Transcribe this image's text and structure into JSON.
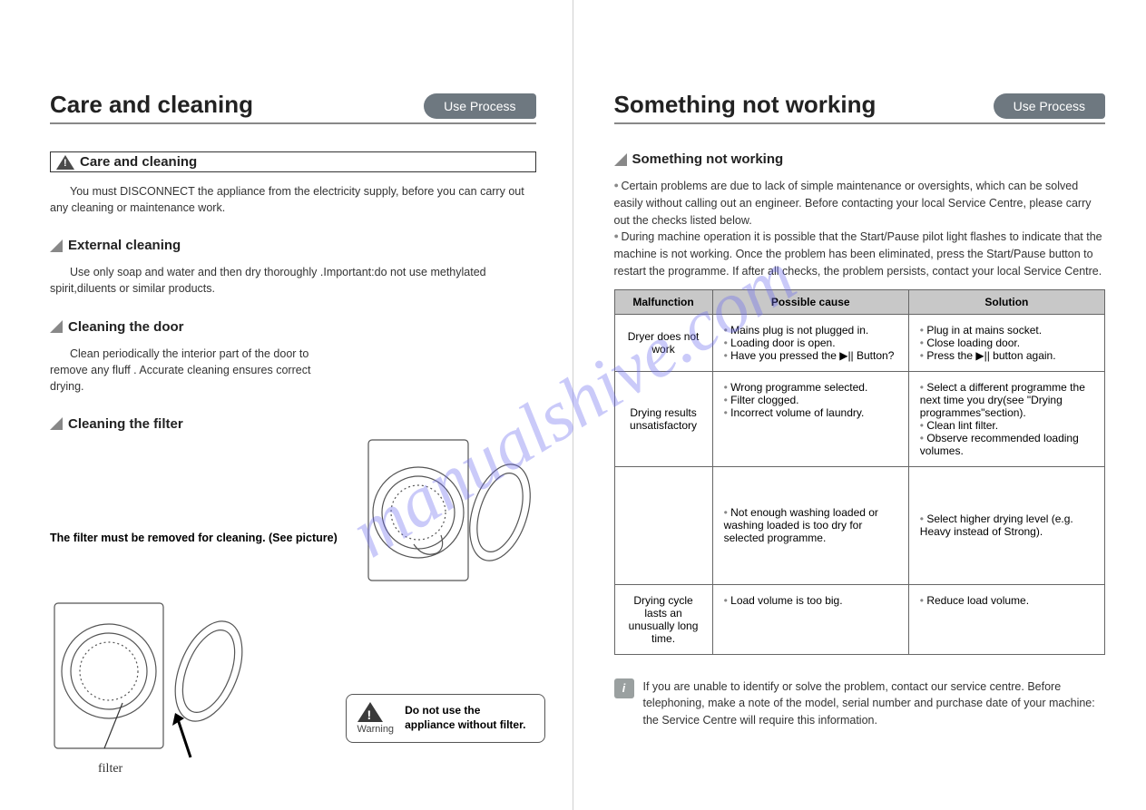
{
  "watermark": "manualshive.com",
  "left": {
    "title": "Care and cleaning",
    "tab": "Use Process",
    "section1": {
      "heading": "Care and cleaning",
      "text": "You must DISCONNECT the appliance from the electricity supply, before you can carry out any cleaning or maintenance work."
    },
    "section2": {
      "heading": "External cleaning",
      "text": "Use only soap and water and then dry thoroughly .Important:do not use methylated spirit,diluents or similar products."
    },
    "section3": {
      "heading": "Cleaning the door",
      "text": "Clean periodically the interior part of the door to remove any fluff . Accurate cleaning ensures correct drying."
    },
    "section4": {
      "heading": "Cleaning the filter",
      "caption": "The filter must be removed for cleaning. (See picture)"
    },
    "filter_label": "filter",
    "warning": {
      "label": "Warning",
      "text": "Do not use the appliance without filter."
    }
  },
  "right": {
    "title": "Something not working",
    "tab": "Use Process",
    "section_heading": "Something not working",
    "bullets": [
      "Certain problems are due to lack of simple maintenance or oversights, which can be solved easily without calling out an engineer. Before contacting your local Service Centre, please carry out the checks listed below.",
      "During machine operation it is possible that the Start/Pause pilot light flashes  to indicate that the machine is not working. Once the problem has been eliminated, press the Start/Pause button to restart the programme. If after all checks, the problem persists, contact your local Service Centre."
    ],
    "table": {
      "headers": [
        "Malfunction",
        "Possible cause",
        "Solution"
      ],
      "rows": [
        {
          "malfunction": "Dryer does not work",
          "causes": [
            "Mains plug is not plugged in.",
            "Loading door is open.",
            "Have you pressed the  ▶||  Button?"
          ],
          "solutions": [
            "Plug in at mains socket.",
            "Close loading door.",
            "Press the  ▶||  button again."
          ]
        },
        {
          "malfunction": "Drying results unsatisfactory",
          "causes": [
            "Wrong programme selected.",
            "Filter clogged.",
            "Incorrect volume of laundry."
          ],
          "solutions": [
            "Select a different programme the next time you dry(see \"Drying programmes\"section).",
            "Clean lint filter.",
            "Observe recommended loading volumes."
          ]
        },
        {
          "malfunction": "",
          "causes": [
            "Not enough washing loaded or washing loaded is too dry for selected programme."
          ],
          "solutions": [
            "Select higher drying level (e.g. Heavy instead of Strong)."
          ]
        },
        {
          "malfunction": "Drying cycle lasts an unusually long time.",
          "causes": [
            "Load volume is too big."
          ],
          "solutions": [
            "Reduce load volume."
          ]
        }
      ]
    },
    "info": "If you are unable to identify or solve the problem, contact our service centre. Before telephoning, make a note of the model, serial number and purchase date of your machine: the Service Centre will require this information."
  },
  "colors": {
    "tab_bg": "#6e7880",
    "header_bg": "#c8c8c8",
    "border": "#666666",
    "watermark": "#6a6af0"
  }
}
